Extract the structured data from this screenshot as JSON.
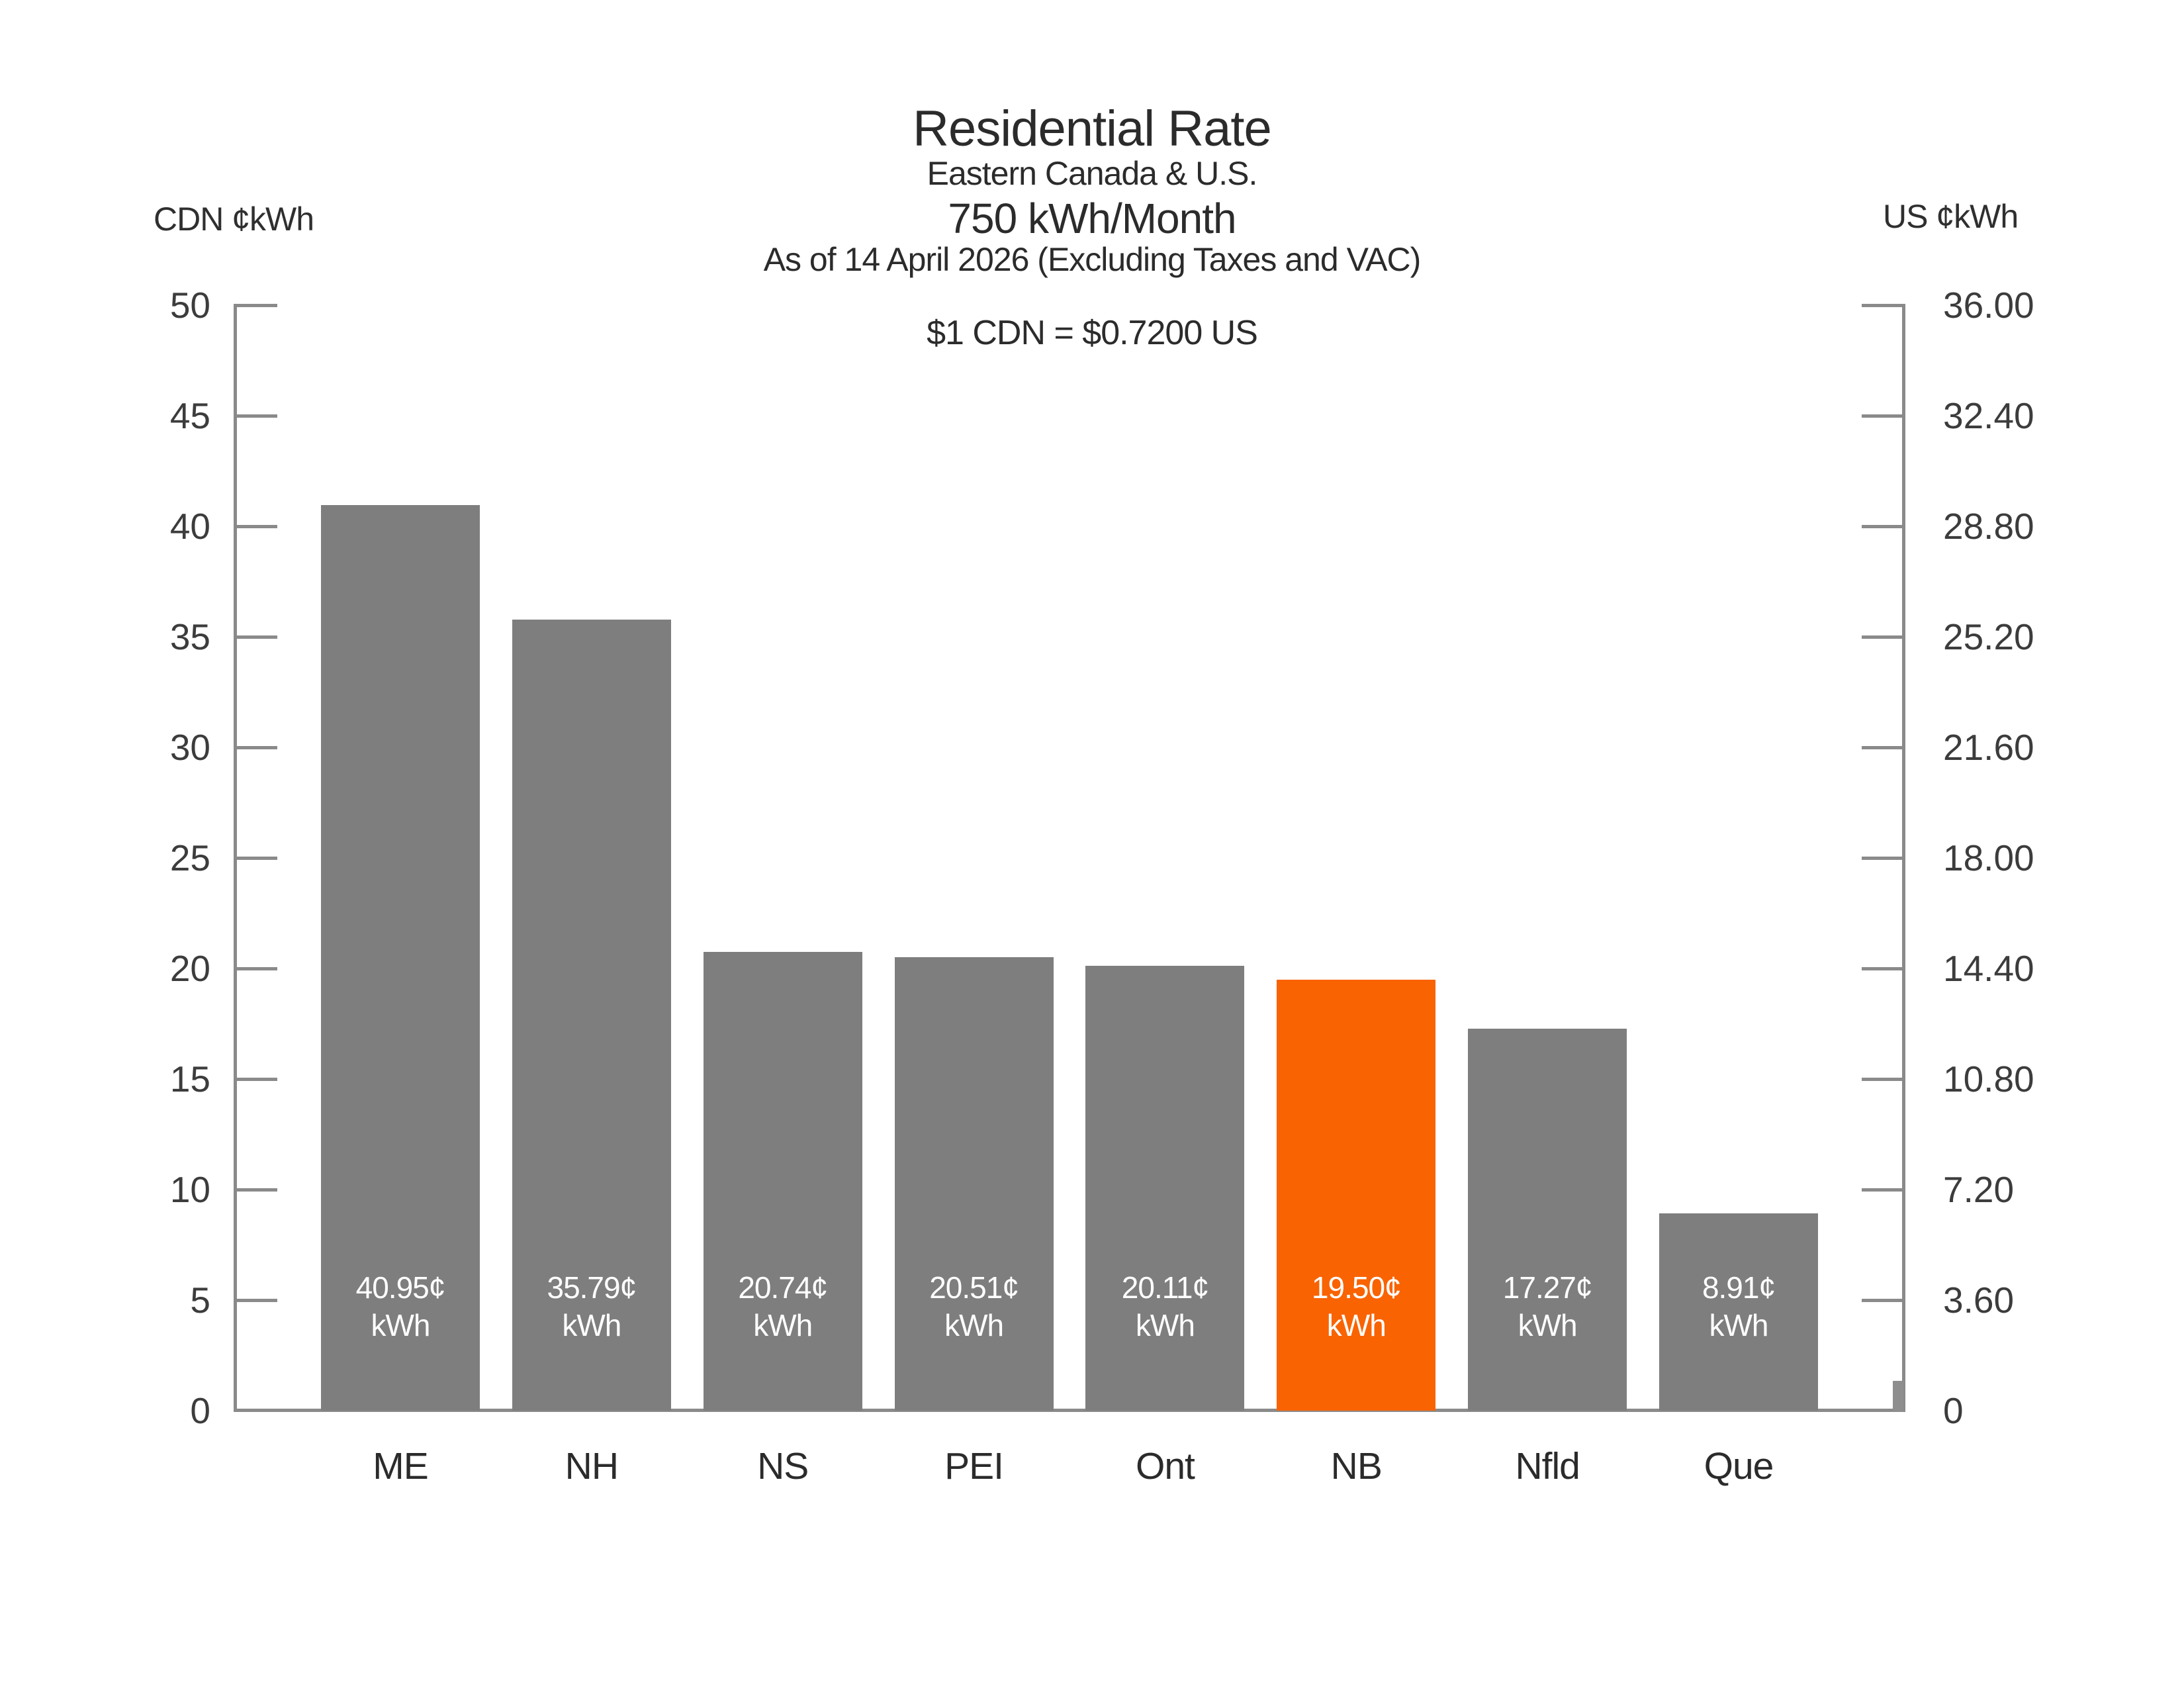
{
  "chart_data": {
    "type": "bar",
    "title": "Residential Rate",
    "subtitle": "Eastern Canada & U.S.",
    "consumption": "750 kWh/Month",
    "as_of": "As of 14 April 2026 (Excluding Taxes and VAC)",
    "exchange_note": "$1 CDN = $0.7200 US",
    "left_axis": {
      "label": "CDN ¢kWh",
      "ticks": [
        "0",
        "5",
        "10",
        "15",
        "20",
        "25",
        "30",
        "35",
        "40",
        "45",
        "50"
      ],
      "max": 50
    },
    "right_axis": {
      "label": "US ¢kWh",
      "ticks": [
        "0",
        "3.60",
        "7.20",
        "10.80",
        "14.40",
        "18.00",
        "21.60",
        "25.20",
        "28.80",
        "32.40",
        "36.00"
      ],
      "max": 36.0
    },
    "categories": [
      "ME",
      "NH",
      "NS",
      "PEI",
      "Ont",
      "NB",
      "Nfld",
      "Que"
    ],
    "values": [
      40.95,
      35.79,
      20.74,
      20.51,
      20.11,
      19.5,
      17.27,
      8.91
    ],
    "bar_labels": [
      [
        "40.95¢",
        "kWh"
      ],
      [
        "35.79¢",
        "kWh"
      ],
      [
        "20.74¢",
        "kWh"
      ],
      [
        "20.51¢",
        "kWh"
      ],
      [
        "20.11¢",
        "kWh"
      ],
      [
        "19.50¢",
        "kWh"
      ],
      [
        "17.27¢",
        "kWh"
      ],
      [
        "8.91¢",
        "kWh"
      ]
    ],
    "highlight_index": 5,
    "highlight_category": "NB",
    "ylim": [
      0,
      50
    ],
    "grid": false,
    "legend": "none",
    "colors": {
      "bar": "#7E7E7E",
      "highlight_bar": "#F96302",
      "axis_line": "#8A8A8A",
      "label_text": "#2B2B2B",
      "tick_text": "#3C3C3C",
      "bar_label_text": "#FFFFFF",
      "background": "#FFFFFF"
    }
  }
}
